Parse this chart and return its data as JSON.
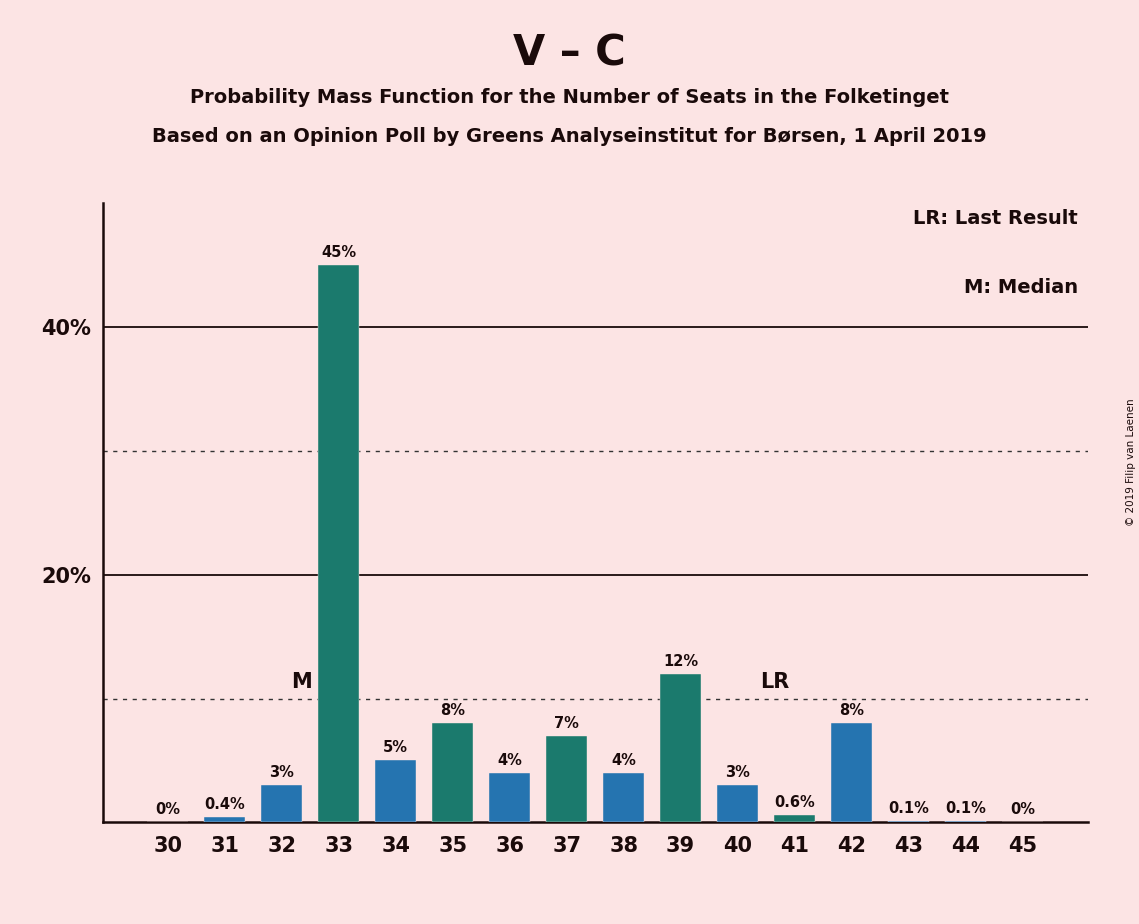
{
  "title": "V – C",
  "subtitle1": "Probability Mass Function for the Number of Seats in the Folketinget",
  "subtitle2": "Based on an Opinion Poll by Greens Analyseinstitut for Børsen, 1 April 2019",
  "copyright": "© 2019 Filip van Laenen",
  "legend_lr": "LR: Last Result",
  "legend_m": "M: Median",
  "seats": [
    30,
    31,
    32,
    33,
    34,
    35,
    36,
    37,
    38,
    39,
    40,
    41,
    42,
    43,
    44,
    45
  ],
  "values": [
    0.0,
    0.4,
    3.0,
    45.0,
    5.0,
    8.0,
    4.0,
    7.0,
    4.0,
    12.0,
    3.0,
    0.6,
    8.0,
    0.1,
    0.1,
    0.0
  ],
  "labels": [
    "0%",
    "0.4%",
    "3%",
    "45%",
    "5%",
    "8%",
    "4%",
    "7%",
    "4%",
    "12%",
    "3%",
    "0.6%",
    "8%",
    "0.1%",
    "0.1%",
    "0%"
  ],
  "colors": [
    "#1b7a6d",
    "#2574b0",
    "#2574b0",
    "#1b7a6d",
    "#2574b0",
    "#1b7a6d",
    "#2574b0",
    "#1b7a6d",
    "#2574b0",
    "#1b7a6d",
    "#2574b0",
    "#1b7a6d",
    "#2574b0",
    "#2574b0",
    "#2574b0",
    "#1b7a6d"
  ],
  "median_seat": 33,
  "lr_seat": 40,
  "background_color": "#fce4e4",
  "ylim": [
    0,
    50
  ],
  "fig_width": 11.39,
  "fig_height": 9.24,
  "dpi": 100
}
